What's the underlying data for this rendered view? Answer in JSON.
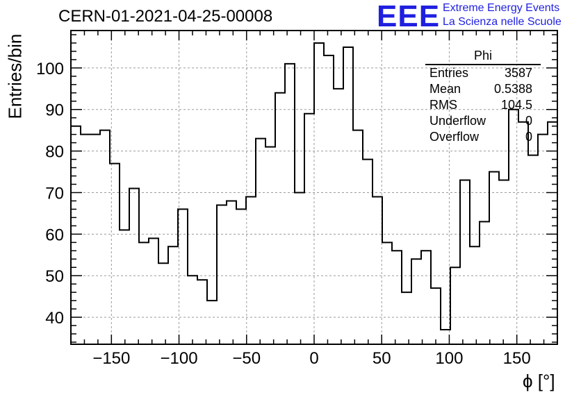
{
  "title": "CERN-01-2021-04-25-00008",
  "logo": {
    "mark": "EEE",
    "line1": "Extreme Energy Events",
    "line2": "La Scienza nelle Scuole",
    "color": "#1f1fe0"
  },
  "stats_box": {
    "title": "Phi",
    "rows": [
      {
        "key": "Entries",
        "value": "3587"
      },
      {
        "key": "Mean",
        "value": "0.5388"
      },
      {
        "key": "RMS",
        "value": "104.5"
      },
      {
        "key": "Underflow",
        "value": "0"
      },
      {
        "key": "Overflow",
        "value": "0"
      }
    ]
  },
  "chart_data": {
    "type": "histogram",
    "title": "CERN-01-2021-04-25-00008",
    "xlabel": "ϕ [°]",
    "ylabel": "Entries/bin",
    "xlim": [
      -180,
      180
    ],
    "ylim": [
      33.5,
      109
    ],
    "xticks": [
      -150,
      -100,
      -50,
      0,
      50,
      100,
      150
    ],
    "yticks": [
      40,
      50,
      60,
      70,
      80,
      90,
      100
    ],
    "grid": true,
    "line_color": "#000000",
    "bin_width": 7.2,
    "x_edges_start": -180,
    "values": [
      86,
      84,
      84,
      85,
      77,
      61,
      71,
      58,
      59,
      53,
      57,
      66,
      50,
      49,
      44,
      67,
      68,
      66,
      69,
      83,
      81,
      94,
      101,
      70,
      89,
      106,
      103,
      95,
      105,
      85,
      78,
      69,
      58,
      56,
      46,
      54,
      56,
      47,
      37,
      52,
      73,
      57,
      63,
      75,
      73,
      90,
      87,
      79,
      84,
      87
    ]
  }
}
